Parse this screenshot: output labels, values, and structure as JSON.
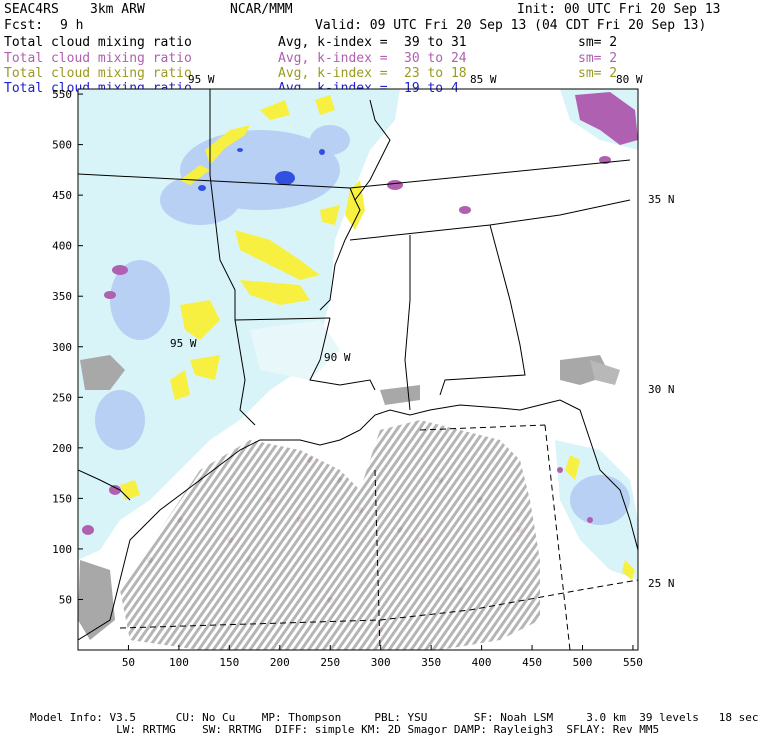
{
  "header": {
    "model": "SEAC4RS",
    "resolution": "3km ARW",
    "org": "NCAR/MMM",
    "init": "Init: 00 UTC Fri 20 Sep 13",
    "fcst_label": "Fcst:",
    "fcst_value": "9 h",
    "valid": "Valid: 09 UTC Fri 20 Sep 13 (04 CDT Fri 20 Sep 13)"
  },
  "fields": [
    {
      "name": "Total cloud mixing ratio",
      "avg": "Avg, k-index =",
      "range": "39 to 31",
      "sm": "sm= 2",
      "color": "#000000"
    },
    {
      "name": "Total cloud mixing ratio",
      "avg": "Avg, k-index =",
      "range": "30 to 24",
      "sm": "sm= 2",
      "color": "#b060b0"
    },
    {
      "name": "Total cloud mixing ratio",
      "avg": "Avg, k-index =",
      "range": "23 to 18",
      "sm": "sm= 2",
      "color": "#9a9a20"
    },
    {
      "name": "Total cloud mixing ratio",
      "avg": "Avg, k-index =",
      "range": "19 to 4",
      "sm": "",
      "color": "#2020d0"
    }
  ],
  "map": {
    "x_ticks": [
      "50",
      "100",
      "150",
      "200",
      "250",
      "300",
      "350",
      "400",
      "450",
      "500",
      "550"
    ],
    "y_ticks": [
      "50",
      "100",
      "150",
      "200",
      "250",
      "300",
      "350",
      "400",
      "450",
      "500",
      "550"
    ],
    "lon_labels": [
      "95 W",
      "90 W",
      "85 W",
      "80 W"
    ],
    "lat_labels": [
      "35 N",
      "30 N",
      "25 N"
    ],
    "colors": {
      "light_cyan": "#d8f4f8",
      "blue": "#3050e0",
      "purple": "#b060b0",
      "yellow": "#f8f040",
      "gray": "#a8a8a8"
    }
  },
  "footer": {
    "line1": "Model Info: V3.5      CU: No Cu    MP: Thompson     PBL: YSU       SF: Noah LSM     3.0 km  39 levels   18 sec",
    "line2": "             LW: RRTMG    SW: RRTMG  DIFF: simple KM: 2D Smagor DAMP: Rayleigh3  SFLAY: Rev MM5"
  }
}
